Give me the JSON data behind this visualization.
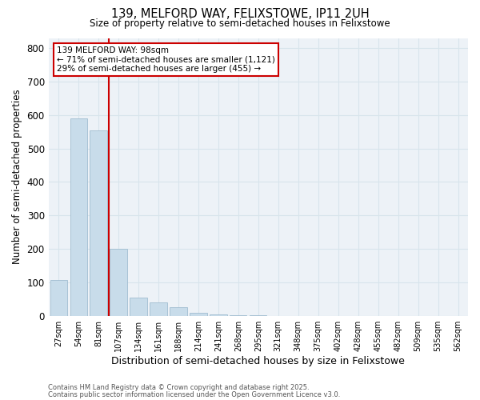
{
  "title1": "139, MELFORD WAY, FELIXSTOWE, IP11 2UH",
  "title2": "Size of property relative to semi-detached houses in Felixstowe",
  "xlabel": "Distribution of semi-detached houses by size in Felixstowe",
  "ylabel": "Number of semi-detached properties",
  "categories": [
    "27sqm",
    "54sqm",
    "81sqm",
    "107sqm",
    "134sqm",
    "161sqm",
    "188sqm",
    "214sqm",
    "241sqm",
    "268sqm",
    "295sqm",
    "321sqm",
    "348sqm",
    "375sqm",
    "402sqm",
    "428sqm",
    "455sqm",
    "482sqm",
    "509sqm",
    "535sqm",
    "562sqm"
  ],
  "values": [
    107,
    590,
    555,
    200,
    55,
    40,
    25,
    10,
    5,
    2,
    1,
    0,
    0,
    0,
    0,
    0,
    0,
    0,
    0,
    0,
    0
  ],
  "bar_color": "#c8dcea",
  "bar_edge_color": "#a0bdd0",
  "vline_color": "#cc0000",
  "vline_x": 2.5,
  "annotation_title": "139 MELFORD WAY: 98sqm",
  "annotation_line1": "← 71% of semi-detached houses are smaller (1,121)",
  "annotation_line2": "29% of semi-detached houses are larger (455) →",
  "annotation_box_color": "#ffffff",
  "annotation_box_edge": "#cc0000",
  "ylim": [
    0,
    830
  ],
  "yticks": [
    0,
    100,
    200,
    300,
    400,
    500,
    600,
    700,
    800
  ],
  "grid_color": "#d8e4ec",
  "bg_color": "#edf2f7",
  "footnote1": "Contains HM Land Registry data © Crown copyright and database right 2025.",
  "footnote2": "Contains public sector information licensed under the Open Government Licence v3.0."
}
